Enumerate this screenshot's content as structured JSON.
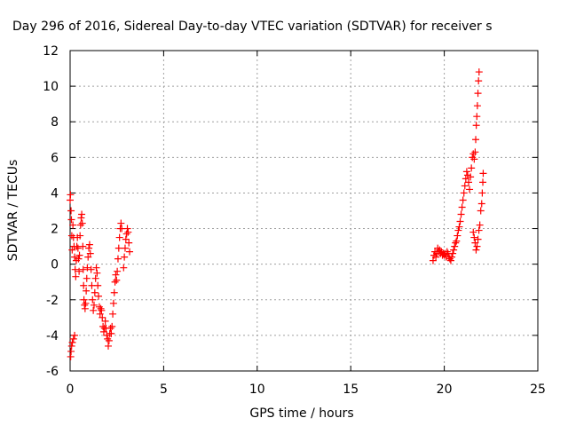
{
  "chart_data": {
    "type": "scatter",
    "title": "Day 296 of 2016, Sidereal Day-to-day VTEC variation (SDTVAR) for receiver s",
    "xlabel": "GPS time / hours",
    "ylabel": "SDTVAR / TECUs",
    "xlim": [
      0,
      25
    ],
    "ylim": [
      -6,
      12
    ],
    "xticks": [
      "0",
      "5",
      "10",
      "15",
      "20",
      "25"
    ],
    "yticks": [
      "-6",
      "-4",
      "-2",
      "0",
      "2",
      "4",
      "6",
      "8",
      "10",
      "12"
    ],
    "grid": true,
    "marker": "plus",
    "color": "#ff0000",
    "series": [
      {
        "points": [
          [
            0.0,
            3.6
          ],
          [
            0.02,
            3.9
          ],
          [
            0.05,
            3.0
          ],
          [
            0.07,
            2.5
          ],
          [
            0.09,
            1.6
          ],
          [
            0.11,
            0.8
          ],
          [
            0.03,
            -5.2
          ],
          [
            0.05,
            -4.9
          ],
          [
            0.08,
            -4.6
          ],
          [
            0.12,
            -4.4
          ],
          [
            0.18,
            -4.2
          ],
          [
            0.24,
            -4.0
          ],
          [
            0.15,
            2.2
          ],
          [
            0.18,
            1.5
          ],
          [
            0.21,
            1.0
          ],
          [
            0.24,
            0.4
          ],
          [
            0.27,
            -0.3
          ],
          [
            0.3,
            -0.7
          ],
          [
            0.33,
            0.2
          ],
          [
            0.36,
            1.0
          ],
          [
            0.39,
            1.5
          ],
          [
            0.42,
            0.9
          ],
          [
            0.45,
            0.3
          ],
          [
            0.48,
            -0.4
          ],
          [
            0.5,
            0.5
          ],
          [
            0.53,
            1.6
          ],
          [
            0.56,
            2.2
          ],
          [
            0.59,
            2.6
          ],
          [
            0.62,
            2.8
          ],
          [
            0.65,
            2.3
          ],
          [
            0.68,
            1.0
          ],
          [
            0.7,
            -0.3
          ],
          [
            0.72,
            -1.2
          ],
          [
            0.74,
            -2.0
          ],
          [
            0.77,
            -2.3
          ],
          [
            0.8,
            -2.5
          ],
          [
            0.83,
            -2.2
          ],
          [
            0.86,
            -1.5
          ],
          [
            0.89,
            -0.8
          ],
          [
            0.92,
            -0.2
          ],
          [
            0.96,
            0.4
          ],
          [
            1.0,
            0.9
          ],
          [
            1.04,
            1.1
          ],
          [
            1.08,
            0.6
          ],
          [
            1.12,
            -0.3
          ],
          [
            1.16,
            -1.2
          ],
          [
            1.2,
            -2.0
          ],
          [
            1.24,
            -2.6
          ],
          [
            1.28,
            -2.3
          ],
          [
            1.32,
            -1.6
          ],
          [
            1.36,
            -0.8
          ],
          [
            1.4,
            -0.2
          ],
          [
            1.44,
            -0.5
          ],
          [
            1.48,
            -1.2
          ],
          [
            1.52,
            -1.8
          ],
          [
            1.56,
            -2.4
          ],
          [
            1.6,
            -2.8
          ],
          [
            1.64,
            -2.5
          ],
          [
            1.68,
            -2.6
          ],
          [
            1.72,
            -3.0
          ],
          [
            1.76,
            -3.5
          ],
          [
            1.8,
            -3.8
          ],
          [
            1.84,
            -3.6
          ],
          [
            1.88,
            -3.2
          ],
          [
            1.92,
            -3.6
          ],
          [
            1.96,
            -4.0
          ],
          [
            2.0,
            -4.2
          ],
          [
            2.04,
            -4.6
          ],
          [
            2.08,
            -4.3
          ],
          [
            2.12,
            -3.9
          ],
          [
            2.16,
            -3.6
          ],
          [
            2.2,
            -3.9
          ],
          [
            2.24,
            -3.5
          ],
          [
            2.28,
            -2.8
          ],
          [
            2.32,
            -2.2
          ],
          [
            2.36,
            -1.6
          ],
          [
            2.4,
            -1.0
          ],
          [
            2.44,
            -0.6
          ],
          [
            2.48,
            -0.9
          ],
          [
            2.52,
            -0.4
          ],
          [
            2.56,
            0.3
          ],
          [
            2.6,
            0.9
          ],
          [
            2.64,
            1.5
          ],
          [
            2.68,
            2.0
          ],
          [
            2.72,
            2.3
          ],
          [
            2.76,
            2.0
          ],
          [
            2.86,
            -0.2
          ],
          [
            2.9,
            0.4
          ],
          [
            2.94,
            0.9
          ],
          [
            2.98,
            1.4
          ],
          [
            3.02,
            1.7
          ],
          [
            3.06,
            2.0
          ],
          [
            3.1,
            1.8
          ],
          [
            3.14,
            1.2
          ],
          [
            3.18,
            0.7
          ],
          [
            19.4,
            0.2
          ],
          [
            19.45,
            0.5
          ],
          [
            19.5,
            0.7
          ],
          [
            19.55,
            0.4
          ],
          [
            19.6,
            0.6
          ],
          [
            19.65,
            0.9
          ],
          [
            19.7,
            0.7
          ],
          [
            19.75,
            0.8
          ],
          [
            19.8,
            0.6
          ],
          [
            19.85,
            0.7
          ],
          [
            19.9,
            0.5
          ],
          [
            19.95,
            0.6
          ],
          [
            20.0,
            0.5
          ],
          [
            20.05,
            0.6
          ],
          [
            20.1,
            0.4
          ],
          [
            20.15,
            0.7
          ],
          [
            20.2,
            0.6
          ],
          [
            20.25,
            0.4
          ],
          [
            20.3,
            0.3
          ],
          [
            20.35,
            0.2
          ],
          [
            20.4,
            0.4
          ],
          [
            20.45,
            0.6
          ],
          [
            20.5,
            0.8
          ],
          [
            20.55,
            1.0
          ],
          [
            20.6,
            1.2
          ],
          [
            20.65,
            1.3
          ],
          [
            20.7,
            1.6
          ],
          [
            20.75,
            1.9
          ],
          [
            20.8,
            2.1
          ],
          [
            20.85,
            2.4
          ],
          [
            20.9,
            2.8
          ],
          [
            20.95,
            3.2
          ],
          [
            21.0,
            3.6
          ],
          [
            21.05,
            4.0
          ],
          [
            21.1,
            4.4
          ],
          [
            21.15,
            4.8
          ],
          [
            21.2,
            5.2
          ],
          [
            21.25,
            5.0
          ],
          [
            21.3,
            4.6
          ],
          [
            21.35,
            4.2
          ],
          [
            21.4,
            4.9
          ],
          [
            21.45,
            5.4
          ],
          [
            21.5,
            6.0
          ],
          [
            21.55,
            6.2
          ],
          [
            21.6,
            5.9
          ],
          [
            21.65,
            6.3
          ],
          [
            21.68,
            7.0
          ],
          [
            21.71,
            7.8
          ],
          [
            21.74,
            8.3
          ],
          [
            21.77,
            8.9
          ],
          [
            21.8,
            9.6
          ],
          [
            21.83,
            10.3
          ],
          [
            21.86,
            10.8
          ],
          [
            21.55,
            1.8
          ],
          [
            21.6,
            1.5
          ],
          [
            21.65,
            1.2
          ],
          [
            21.7,
            0.8
          ],
          [
            21.75,
            1.0
          ],
          [
            21.8,
            1.4
          ],
          [
            21.85,
            1.9
          ],
          [
            21.9,
            2.2
          ],
          [
            21.95,
            3.0
          ],
          [
            22.0,
            3.4
          ],
          [
            22.03,
            4.0
          ],
          [
            22.06,
            4.6
          ],
          [
            22.08,
            5.1
          ]
        ]
      }
    ]
  }
}
